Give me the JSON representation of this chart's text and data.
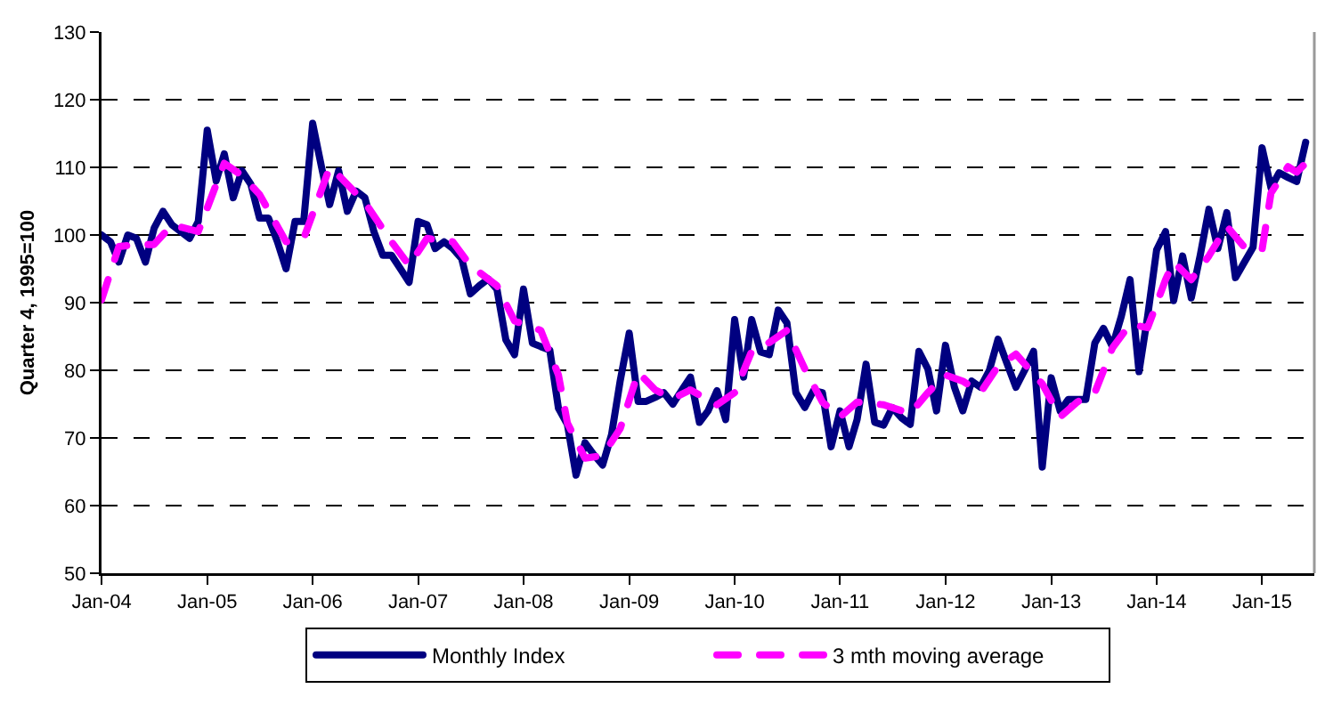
{
  "chart_data": {
    "type": "line",
    "ylabel": "Quarter 4, 1995=100",
    "grid": "y",
    "legend": "bottom",
    "line_style": "solid",
    "marker": "none",
    "xlim": [
      "2004-01",
      "2015-07"
    ],
    "xticks": [
      {
        "value": "2004-01",
        "label": "Jan-04"
      },
      {
        "value": "2005-01",
        "label": "Jan-05"
      },
      {
        "value": "2006-01",
        "label": "Jan-06"
      },
      {
        "value": "2007-01",
        "label": "Jan-07"
      },
      {
        "value": "2008-01",
        "label": "Jan-08"
      },
      {
        "value": "2009-01",
        "label": "Jan-09"
      },
      {
        "value": "2010-01",
        "label": "Jan-10"
      },
      {
        "value": "2011-01",
        "label": "Jan-11"
      },
      {
        "value": "2012-01",
        "label": "Jan-12"
      },
      {
        "value": "2013-01",
        "label": "Jan-13"
      },
      {
        "value": "2014-01",
        "label": "Jan-14"
      },
      {
        "value": "2015-01",
        "label": "Jan-15"
      }
    ],
    "ylim": [
      50,
      130
    ],
    "yticks": [
      50,
      60,
      70,
      80,
      90,
      100,
      110,
      120,
      130
    ],
    "x": [
      "2004-01",
      "2004-02",
      "2004-03",
      "2004-04",
      "2004-05",
      "2004-06",
      "2004-07",
      "2004-08",
      "2004-09",
      "2004-10",
      "2004-11",
      "2004-12",
      "2005-01",
      "2005-02",
      "2005-03",
      "2005-04",
      "2005-05",
      "2005-06",
      "2005-07",
      "2005-08",
      "2005-09",
      "2005-10",
      "2005-11",
      "2005-12",
      "2006-01",
      "2006-02",
      "2006-03",
      "2006-04",
      "2006-05",
      "2006-06",
      "2006-07",
      "2006-08",
      "2006-09",
      "2006-10",
      "2006-11",
      "2006-12",
      "2007-01",
      "2007-02",
      "2007-03",
      "2007-04",
      "2007-05",
      "2007-06",
      "2007-07",
      "2007-08",
      "2007-09",
      "2007-10",
      "2007-11",
      "2007-12",
      "2008-01",
      "2008-02",
      "2008-03",
      "2008-04",
      "2008-05",
      "2008-06",
      "2008-07",
      "2008-08",
      "2008-09",
      "2008-10",
      "2008-11",
      "2008-12",
      "2009-01",
      "2009-02",
      "2009-03",
      "2009-04",
      "2009-05",
      "2009-06",
      "2009-07",
      "2009-08",
      "2009-09",
      "2009-10",
      "2009-11",
      "2009-12",
      "2010-01",
      "2010-02",
      "2010-03",
      "2010-04",
      "2010-05",
      "2010-06",
      "2010-07",
      "2010-08",
      "2010-09",
      "2010-10",
      "2010-11",
      "2010-12",
      "2011-01",
      "2011-02",
      "2011-03",
      "2011-04",
      "2011-05",
      "2011-06",
      "2011-07",
      "2011-08",
      "2011-09",
      "2011-10",
      "2011-11",
      "2011-12",
      "2012-01",
      "2012-02",
      "2012-03",
      "2012-04",
      "2012-05",
      "2012-06",
      "2012-07",
      "2012-08",
      "2012-09",
      "2012-10",
      "2012-11",
      "2012-12",
      "2013-01",
      "2013-02",
      "2013-03",
      "2013-04",
      "2013-05",
      "2013-06",
      "2013-07",
      "2013-08",
      "2013-09",
      "2013-10",
      "2013-11",
      "2013-12",
      "2014-01",
      "2014-02",
      "2014-03",
      "2014-04",
      "2014-05",
      "2014-06",
      "2014-07",
      "2014-08",
      "2014-09",
      "2014-10",
      "2014-11",
      "2014-12",
      "2015-01",
      "2015-02",
      "2015-03",
      "2015-04",
      "2015-05",
      "2015-06"
    ],
    "series": [
      {
        "name": "Monthly Index",
        "color": "#000080",
        "values": [
          100,
          99,
          96,
          100,
          99.5,
          96,
          101,
          103.5,
          101.5,
          100.5,
          99.5,
          102,
          115.5,
          108,
          112,
          105.5,
          109.5,
          107.5,
          102.5,
          102.5,
          99,
          95,
          102,
          102,
          116.5,
          110,
          104.5,
          109.5,
          103.5,
          106.5,
          105.5,
          100.5,
          97,
          97,
          95,
          93,
          102,
          101.5,
          98,
          99,
          98,
          96.5,
          91.3,
          92.5,
          93.5,
          92,
          84.5,
          82.3,
          92,
          84,
          83.5,
          83,
          74.4,
          72,
          64.5,
          69.3,
          67.5,
          66,
          70.5,
          78.5,
          85.5,
          75.4,
          75.4,
          76,
          76.7,
          75,
          77,
          79,
          72.3,
          74,
          77,
          72.7,
          87.5,
          79,
          87.5,
          82.7,
          82.3,
          88.9,
          87,
          76.7,
          74.5,
          77,
          76.7,
          68.7,
          74,
          68.7,
          72.7,
          80.9,
          72.3,
          71.9,
          74.5,
          73,
          72,
          82.8,
          80.2,
          74,
          83.7,
          77.5,
          74,
          78.4,
          77.5,
          80,
          84.6,
          81,
          77.5,
          80,
          82.8,
          65.7,
          78.9,
          74,
          75.7,
          75.7,
          75.7,
          84,
          86.2,
          83.5,
          88,
          93.4,
          79.8,
          88,
          97.8,
          100.5,
          90.3,
          96.9,
          90.7,
          97,
          103.8,
          98,
          103.3,
          93.7,
          96,
          98.2,
          112.9,
          107,
          109.2,
          108.5,
          107.9,
          113.7
        ]
      },
      {
        "name": "3 mth moving average",
        "color": "#ff00ff",
        "line_style": "dashed",
        "x": [
          "2004-01",
          "2004-03",
          "2004-05",
          "2004-07",
          "2004-09",
          "2004-12",
          "2005-03",
          "2005-05",
          "2005-07",
          "2005-10",
          "2005-12",
          "2006-03",
          "2006-04",
          "2006-07",
          "2006-10",
          "2006-12",
          "2007-02",
          "2007-05",
          "2007-07",
          "2007-10",
          "2007-12",
          "2008-03",
          "2008-05",
          "2008-06",
          "2008-08",
          "2008-10",
          "2008-12",
          "2009-02",
          "2009-04",
          "2009-06",
          "2009-08",
          "2009-11",
          "2010-01",
          "2010-03",
          "2010-05",
          "2010-07",
          "2010-09",
          "2010-11",
          "2011-01",
          "2011-03",
          "2011-06",
          "2011-09",
          "2011-11",
          "2012-01",
          "2012-03",
          "2012-05",
          "2012-07",
          "2012-09",
          "2012-12",
          "2013-02",
          "2013-04",
          "2013-06",
          "2013-08",
          "2013-10",
          "2013-12",
          "2014-02",
          "2014-03",
          "2014-05",
          "2014-07",
          "2014-09",
          "2014-11",
          "2015-01",
          "2015-02",
          "2015-04",
          "2015-05",
          "2015-06"
        ],
        "values": [
          90.4,
          98.3,
          98.6,
          98.6,
          101.5,
          100.5,
          110.6,
          108.8,
          106,
          99,
          99.5,
          110,
          108.8,
          104.8,
          99,
          95.5,
          99.5,
          99,
          95.5,
          92.5,
          87.3,
          85.9,
          79.3,
          72.2,
          67,
          67.4,
          71.4,
          79.7,
          77.1,
          75.8,
          77.1,
          74.9,
          76.7,
          82.8,
          84.1,
          85.9,
          80.2,
          75.3,
          73.1,
          75.3,
          74.9,
          73.6,
          76.7,
          79.3,
          78.4,
          76.7,
          80.6,
          82.4,
          78,
          73.1,
          75.3,
          76.7,
          83.3,
          86.8,
          86.3,
          93.4,
          96,
          93.4,
          96.9,
          101.3,
          98.2,
          97.8,
          106.2,
          110.1,
          109.3,
          110.6
        ]
      }
    ]
  }
}
